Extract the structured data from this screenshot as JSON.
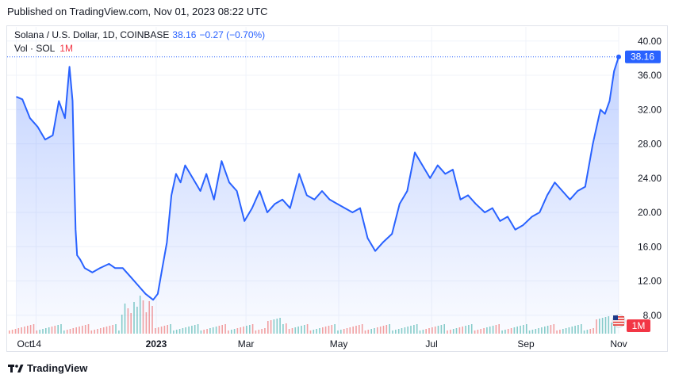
{
  "header": {
    "published": "Published on TradingView.com, Nov 01, 2023 08:22 UTC"
  },
  "legend": {
    "symbol": "Solana / U.S. Dollar, 1D, COINBASE",
    "last": "38.16",
    "change": "−0.27 (−0.70%)",
    "vol_label": "Vol · SOL",
    "vol_value": "1M"
  },
  "footer": {
    "brand": "TradingView"
  },
  "colors": {
    "line": "#2962ff",
    "vol_up": "#26a69a",
    "vol_down": "#ef5350",
    "price_label": "#2962ff",
    "vol_label_bg": "#f23645"
  },
  "chart_data": {
    "type": "area",
    "x_ticks": [
      "Oct",
      "14",
      "2023",
      "Mar",
      "May",
      "Jul",
      "Sep",
      "Nov"
    ],
    "y_ticks": [
      "40.00",
      "36.00",
      "32.00",
      "28.00",
      "24.00",
      "20.00",
      "16.00",
      "12.00",
      "8.00"
    ],
    "ylim": [
      6.5,
      41
    ],
    "last_price_label": "38.16",
    "volume_label": "1M",
    "series": [
      {
        "name": "Solana / U.S. Dollar",
        "x": [
          "2022-10-01",
          "2022-10-05",
          "2022-10-10",
          "2022-10-15",
          "2022-10-20",
          "2022-10-25",
          "2022-10-29",
          "2022-11-02",
          "2022-11-05",
          "2022-11-07",
          "2022-11-08",
          "2022-11-09",
          "2022-11-10",
          "2022-11-12",
          "2022-11-15",
          "2022-11-20",
          "2022-11-25",
          "2022-12-01",
          "2022-12-05",
          "2022-12-10",
          "2022-12-15",
          "2022-12-20",
          "2022-12-25",
          "2022-12-30",
          "2023-01-02",
          "2023-01-05",
          "2023-01-08",
          "2023-01-11",
          "2023-01-14",
          "2023-01-17",
          "2023-01-20",
          "2023-01-25",
          "2023-01-30",
          "2023-02-03",
          "2023-02-08",
          "2023-02-13",
          "2023-02-18",
          "2023-02-23",
          "2023-02-28",
          "2023-03-05",
          "2023-03-10",
          "2023-03-15",
          "2023-03-20",
          "2023-03-25",
          "2023-03-30",
          "2023-04-05",
          "2023-04-10",
          "2023-04-15",
          "2023-04-20",
          "2023-04-25",
          "2023-04-30",
          "2023-05-05",
          "2023-05-10",
          "2023-05-15",
          "2023-05-20",
          "2023-05-25",
          "2023-05-30",
          "2023-06-05",
          "2023-06-10",
          "2023-06-15",
          "2023-06-20",
          "2023-06-25",
          "2023-06-30",
          "2023-07-05",
          "2023-07-10",
          "2023-07-15",
          "2023-07-20",
          "2023-07-25",
          "2023-07-30",
          "2023-08-05",
          "2023-08-10",
          "2023-08-15",
          "2023-08-20",
          "2023-08-25",
          "2023-08-30",
          "2023-09-05",
          "2023-09-10",
          "2023-09-15",
          "2023-09-20",
          "2023-09-25",
          "2023-09-30",
          "2023-10-05",
          "2023-10-10",
          "2023-10-15",
          "2023-10-20",
          "2023-10-23",
          "2023-10-26",
          "2023-10-29",
          "2023-11-01"
        ],
        "values": [
          33.5,
          33.2,
          31.0,
          30.0,
          28.5,
          29.0,
          33.0,
          31.0,
          37.0,
          33.0,
          25.0,
          18.0,
          15.0,
          14.5,
          13.5,
          13.0,
          13.5,
          14.0,
          13.5,
          13.5,
          12.5,
          11.5,
          10.5,
          9.8,
          10.5,
          13.5,
          16.5,
          22.0,
          24.5,
          23.5,
          25.5,
          24.0,
          22.5,
          24.5,
          21.5,
          26.0,
          23.5,
          22.5,
          19.0,
          20.5,
          22.5,
          20.0,
          21.0,
          21.5,
          20.5,
          24.5,
          22.0,
          21.5,
          22.5,
          21.5,
          21.0,
          20.5,
          20.0,
          20.5,
          17.0,
          15.5,
          16.5,
          17.5,
          21.0,
          22.5,
          27.0,
          25.5,
          24.0,
          25.5,
          24.5,
          25.0,
          21.5,
          22.0,
          21.0,
          20.0,
          20.5,
          19.0,
          19.5,
          18.0,
          18.5,
          19.5,
          20.0,
          22.0,
          23.5,
          22.5,
          21.5,
          22.5,
          23.0,
          28.0,
          32.0,
          31.5,
          33.0,
          36.5,
          38.16
        ]
      }
    ]
  }
}
